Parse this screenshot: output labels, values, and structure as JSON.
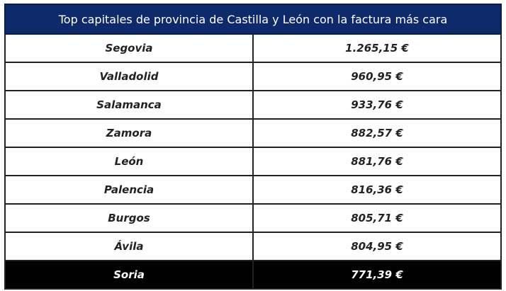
{
  "header": {
    "title": "Top capitales de provincia de Castilla y León con la factura más cara"
  },
  "table": {
    "rows": [
      [
        "Segovia",
        "1.265,15 €"
      ],
      [
        "Valladolid",
        "960,95 €"
      ],
      [
        "Salamanca",
        "933,76 €"
      ],
      [
        "Zamora",
        "882,57 €"
      ],
      [
        "León",
        "881,76 €"
      ],
      [
        "Palencia",
        "816,36 €"
      ],
      [
        "Burgos",
        "805,71 €"
      ],
      [
        "Ávila",
        "804,95 €"
      ],
      [
        "Soria",
        "771,39 €"
      ]
    ]
  }
}
